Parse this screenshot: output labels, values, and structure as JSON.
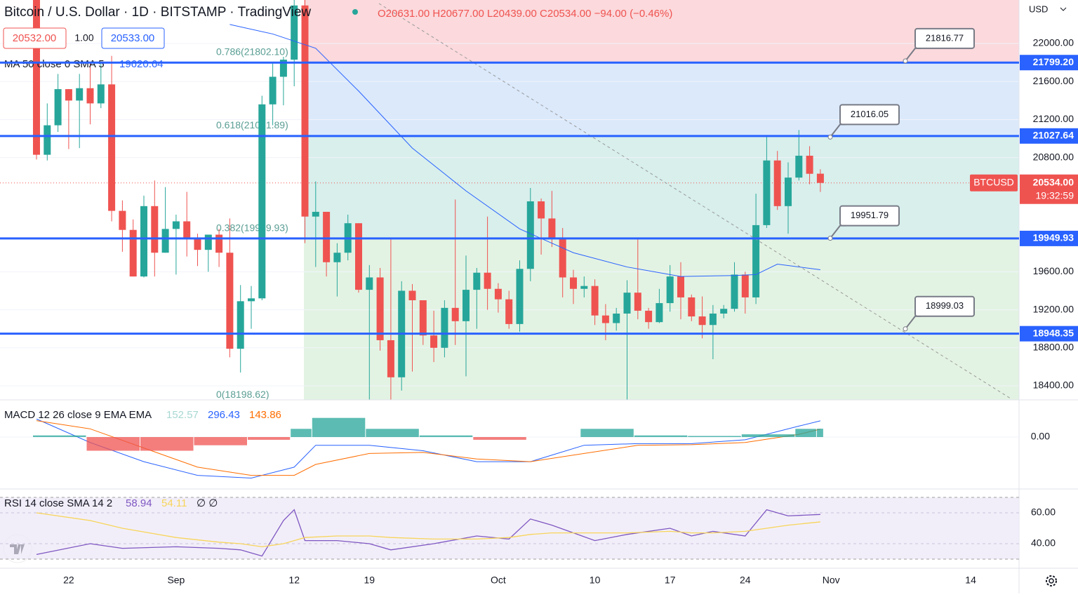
{
  "header": {
    "title": "Bitcoin / U.S. Dollar · 1D · BITSTAMP · TradingView",
    "ohlc": "O20631.00 H20677.00 L20439.00 C20534.00 −94.00 (−0.46%)",
    "bid": "20532.00",
    "qty": "1.00",
    "ask": "20533.00",
    "currency": "USD"
  },
  "chart_data": [
    {
      "type": "candlestick",
      "categories": [
        null,
        null,
        null,
        "22",
        null,
        null,
        null,
        null,
        null,
        null,
        null,
        null,
        null,
        "Sep",
        null,
        null,
        null,
        null,
        null,
        null,
        null,
        null,
        null,
        null,
        "12",
        null,
        null,
        null,
        null,
        null,
        null,
        "19",
        null,
        null,
        null,
        null,
        null,
        null,
        null,
        null,
        null,
        null,
        null,
        "Oct",
        null,
        null,
        null,
        null,
        null,
        null,
        null,
        null,
        "10",
        null,
        null,
        null,
        null,
        null,
        null,
        "17",
        null,
        null,
        null,
        null,
        null,
        null,
        "24",
        null,
        null,
        null,
        null,
        null,
        null,
        null
      ],
      "extra_x_labels": [
        "Nov",
        "14"
      ],
      "open": [
        23200,
        20830,
        21140,
        21520,
        21400,
        21530,
        21370,
        21570,
        20240,
        20040,
        19550,
        20290,
        19800,
        20050,
        20130,
        19950,
        19830,
        19990,
        19800,
        18790,
        19290,
        19320,
        21360,
        21650,
        21830,
        22400,
        20180,
        20230,
        19700,
        19800,
        20110,
        19410,
        19540,
        18880,
        18490,
        19400,
        19300,
        18930,
        18800,
        19220,
        19080,
        19410,
        19590,
        19420,
        19310,
        19050,
        19630,
        20340,
        20160,
        19960,
        19540,
        19420,
        19450,
        19140,
        19060,
        19160,
        19380,
        19190,
        19070,
        19270,
        19550,
        19330,
        19130,
        19040,
        19160,
        19210,
        19570,
        19330,
        20090,
        20770,
        20290,
        20590,
        20820,
        20631
      ],
      "high": [
        23200,
        21370,
        21680,
        21520,
        21680,
        21790,
        21800,
        21870,
        20350,
        20150,
        20400,
        20560,
        20490,
        20200,
        20440,
        20000,
        19990,
        20050,
        20160,
        19460,
        19450,
        21450,
        21800,
        21860,
        22490,
        22800,
        20550,
        20210,
        19900,
        20200,
        20110,
        19670,
        19640,
        19950,
        19500,
        19470,
        19300,
        19190,
        19300,
        20360,
        19770,
        19640,
        20180,
        19480,
        19400,
        19720,
        20480,
        20370,
        20450,
        20060,
        19620,
        19550,
        19520,
        19260,
        19220,
        19510,
        19950,
        19220,
        19420,
        19670,
        19700,
        19360,
        19340,
        19250,
        19250,
        19700,
        19600,
        20420,
        21020,
        20870,
        20750,
        21090,
        20920,
        20677
      ],
      "low": [
        20780,
        20770,
        21070,
        20890,
        20900,
        21150,
        21320,
        20130,
        19810,
        19550,
        19540,
        19550,
        19800,
        19570,
        19760,
        19660,
        19600,
        19650,
        18700,
        18540,
        19000,
        19300,
        21140,
        21350,
        21550,
        19900,
        19650,
        19550,
        19340,
        19720,
        19380,
        18250,
        18770,
        18150,
        18350,
        18550,
        18830,
        18650,
        18700,
        18830,
        18500,
        19000,
        19200,
        19170,
        19000,
        18970,
        19500,
        19780,
        19860,
        19330,
        19260,
        19330,
        19040,
        18880,
        18980,
        18210,
        19100,
        19000,
        19060,
        19180,
        19100,
        19080,
        18900,
        18680,
        19110,
        19180,
        19160,
        19260,
        20060,
        20250,
        20000,
        20560,
        20520,
        20439
      ],
      "close": [
        20830,
        21140,
        21520,
        21400,
        21530,
        21370,
        21570,
        20240,
        20040,
        19550,
        20290,
        19800,
        20050,
        20130,
        19950,
        19830,
        19990,
        19800,
        18790,
        19290,
        19320,
        21360,
        21650,
        21830,
        22400,
        20180,
        20230,
        19700,
        19800,
        20110,
        19410,
        19540,
        18880,
        18490,
        19400,
        19300,
        18930,
        18800,
        19220,
        19080,
        19410,
        19590,
        19420,
        19310,
        19050,
        19630,
        20340,
        20160,
        19960,
        19540,
        19420,
        19450,
        19140,
        19060,
        19160,
        19380,
        19190,
        19070,
        19270,
        19550,
        19330,
        19130,
        19040,
        19160,
        19210,
        19570,
        19330,
        20090,
        20770,
        20290,
        20590,
        20820,
        20630,
        20534
      ],
      "up_color": "#26a69a",
      "down_color": "#ef5350",
      "ylim": [
        18198.62,
        22391.5
      ],
      "yticks": [
        {
          "value": 22000,
          "label": "22000.00"
        },
        {
          "value": 21600,
          "label": "21600.00"
        },
        {
          "value": 21200,
          "label": "21200.00"
        },
        {
          "value": 20800,
          "label": "20800.00"
        },
        {
          "value": 19600,
          "label": "19600.00"
        },
        {
          "value": 19200,
          "label": "19200.00"
        },
        {
          "value": 18800,
          "label": "18800.00"
        },
        {
          "value": 18400,
          "label": "18400.00"
        }
      ],
      "ma": {
        "label": "MA 50 close 0 SMA 5",
        "last": 19620.64,
        "color": "#2962ff",
        "x": [
          18,
          22,
          26,
          30,
          35,
          40,
          45,
          50,
          55,
          60,
          65,
          67,
          69,
          73
        ],
        "values": [
          22200,
          22100,
          21950,
          21500,
          20900,
          20450,
          20050,
          19800,
          19650,
          19550,
          19560,
          19570,
          19680,
          19620.64
        ]
      },
      "fib_levels": [
        {
          "value": 22783,
          "color": "#fbd9dc"
        },
        {
          "value": 21802.1,
          "label": "0.786(21802.10)",
          "color": "#dbe9fb"
        },
        {
          "value": 21031.89,
          "label": "0.618(21031.89)",
          "color": "#d8efec"
        },
        {
          "value": 19949.93,
          "label": "0.382(19949.93)",
          "color": "#e3f3e3"
        },
        {
          "value": 18198.62,
          "label": "0(18198.62)"
        }
      ],
      "levels": [
        {
          "value": 21799.2,
          "label": "21799.20"
        },
        {
          "value": 21027.64,
          "label": "21027.64"
        },
        {
          "value": 19949.93,
          "label": "19949.93"
        },
        {
          "value": 18948.35,
          "label": "18948.35"
        }
      ],
      "callouts": [
        21816.77,
        21016.05,
        19951.79,
        18999.03
      ],
      "last_price": {
        "symbol": "BTCUSD",
        "value": 20534,
        "label": "20534.00",
        "countdown": "19:32:59"
      }
    },
    {
      "type": "macd",
      "label": "MACD 12 26 close 9 EMA EMA",
      "legend_values": [
        152.57,
        296.43,
        143.86
      ],
      "x": [
        0,
        5,
        10,
        15,
        20,
        24,
        26,
        31,
        36,
        41,
        46,
        51,
        56,
        61,
        66,
        71,
        73
      ],
      "series": [
        {
          "name": "MACD",
          "color": "#2962ff",
          "values": [
            330,
            -100,
            -450,
            -700,
            -750,
            -550,
            -150,
            -150,
            -250,
            -450,
            -450,
            -150,
            -120,
            -120,
            -50,
            200,
            296.43
          ]
        },
        {
          "name": "Signal",
          "color": "#ff6d00",
          "values": [
            300,
            150,
            -200,
            -550,
            -700,
            -700,
            -500,
            -300,
            -280,
            -400,
            -450,
            -300,
            -150,
            -140,
            -100,
            50,
            143.86
          ]
        },
        {
          "name": "Histogram",
          "kind": "bar",
          "values": [
            30,
            -250,
            -250,
            -150,
            -50,
            150,
            350,
            150,
            30,
            -50,
            0,
            150,
            30,
            20,
            50,
            150,
            152.57
          ]
        }
      ],
      "yticks": [
        {
          "value": 0,
          "label": "0.00"
        }
      ]
    },
    {
      "type": "line",
      "label": "RSI 14 close SMA 14 2",
      "legend_values": [
        58.94,
        54.11
      ],
      "extra": "∅ ∅",
      "x": [
        0,
        5,
        8,
        13,
        17,
        19,
        21,
        23,
        24,
        25,
        28,
        31,
        33,
        37,
        41,
        44,
        46,
        48,
        52,
        55,
        59,
        61,
        63,
        66,
        68,
        70,
        73
      ],
      "series": [
        {
          "name": "RSI",
          "color": "#7e57c2",
          "values": [
            33,
            40,
            37,
            38,
            37,
            36,
            32,
            55,
            62,
            42,
            42,
            40,
            36,
            40,
            45,
            43,
            56,
            52,
            42,
            46,
            50,
            45,
            48,
            45,
            62,
            58,
            58.94
          ]
        },
        {
          "name": "RSI SMA",
          "color": "#f7d55a",
          "values": [
            60,
            55,
            50,
            44,
            41,
            40,
            38,
            40,
            42,
            44,
            45,
            45,
            44,
            43,
            43,
            44,
            46,
            47,
            47,
            47,
            48,
            47,
            47,
            48,
            50,
            52,
            54.11
          ]
        }
      ],
      "band": [
        70,
        30
      ],
      "yticks": [
        {
          "value": 60,
          "label": "60.00"
        },
        {
          "value": 40,
          "label": "40.00"
        }
      ]
    }
  ]
}
